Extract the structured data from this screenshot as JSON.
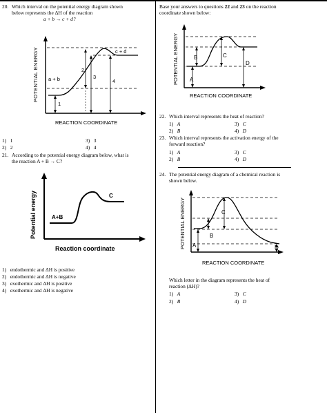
{
  "q20": {
    "number": "20.",
    "line1": "Which interval on the potential energy diagram shown",
    "line2": "below represents the ΔH of the reaction",
    "equation": "a + b → c + d?",
    "diagram": {
      "ylabel": "POTENTIAL ENERGY",
      "xlabel": "REACTION COORDINATE",
      "reactant": "a + b",
      "product": "c + d",
      "intervals": [
        "1",
        "2",
        "3",
        "4"
      ]
    },
    "options": [
      {
        "num": "1)",
        "val": "1"
      },
      {
        "num": "2)",
        "val": "2"
      },
      {
        "num": "3)",
        "val": "3"
      },
      {
        "num": "4)",
        "val": "4"
      }
    ]
  },
  "q21": {
    "number": "21.",
    "line1": "According to the potential energy diagram below, what is",
    "line2": "the reaction A + B → C?",
    "diagram": {
      "ylabel": "Potential energy",
      "xlabel": "Reaction coordinate",
      "reactant": "A+B",
      "product": "C"
    },
    "options": [
      {
        "num": "1)",
        "text": "endothermic and ΔH is positive"
      },
      {
        "num": "2)",
        "text": "endothermic and ΔH is negative"
      },
      {
        "num": "3)",
        "text": "exothermic and ΔH is positive"
      },
      {
        "num": "4)",
        "text": "exothermic and ΔH is negative"
      }
    ]
  },
  "intro": {
    "line1_a": "Base your answers to questions ",
    "line1_b": "22",
    "line1_c": " and ",
    "line1_d": "23",
    "line1_e": " on the reaction",
    "line2": "coordinate shown below:"
  },
  "diagram2": {
    "ylabel": "POTENTIAL ENERGY",
    "xlabel": "REACTION COORDINATE",
    "labels": [
      "A",
      "B",
      "C",
      "D"
    ]
  },
  "q22": {
    "number": "22.",
    "text": "Which interval represents the heat of reaction?",
    "options": [
      {
        "num": "1)",
        "val": "A"
      },
      {
        "num": "2)",
        "val": "B"
      },
      {
        "num": "3)",
        "val": "C"
      },
      {
        "num": "4)",
        "val": "D"
      }
    ]
  },
  "q23": {
    "number": "23.",
    "line1": "Which interval represents the activation energy of the",
    "line2": "forward reaction?",
    "options": [
      {
        "num": "1)",
        "val": "A"
      },
      {
        "num": "2)",
        "val": "B"
      },
      {
        "num": "3)",
        "val": "C"
      },
      {
        "num": "4)",
        "val": "D"
      }
    ]
  },
  "q24": {
    "number": "24.",
    "line1": "The potential energy diagram of a chemical reaction is",
    "line2": "shown below.",
    "diagram": {
      "ylabel": "POTENTIAL ENERGY",
      "xlabel": "REACTION COORDINATE",
      "labels": [
        "A",
        "B",
        "C",
        "D"
      ]
    },
    "question1": "Which letter in the diagram represents the heat of",
    "question2": "reaction (ΔH)?",
    "options": [
      {
        "num": "1)",
        "val": "A"
      },
      {
        "num": "2)",
        "val": "B"
      },
      {
        "num": "3)",
        "val": "C"
      },
      {
        "num": "4)",
        "val": "D"
      }
    ]
  }
}
